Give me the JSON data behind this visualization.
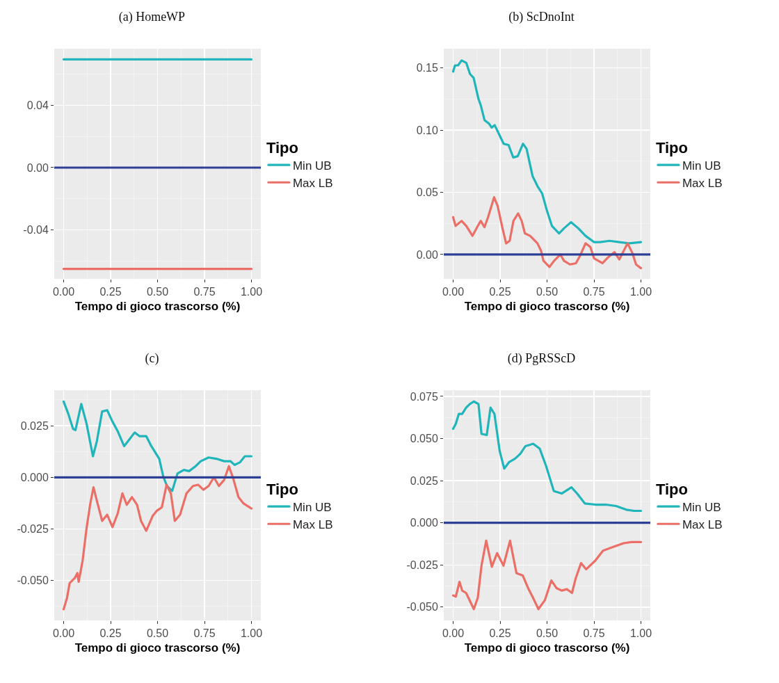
{
  "chart_data": [
    {
      "type": "line",
      "title": "(a) HomeWP",
      "xlabel": "Tempo di gioco trascorso (%)",
      "legend_title": "Tipo",
      "legend": "right",
      "grid": true,
      "line_style": "solid",
      "xlim": [
        -0.05,
        1.05
      ],
      "xticks": [
        {
          "value": 0,
          "label": "0.00"
        },
        {
          "value": 0.25,
          "label": "0.25"
        },
        {
          "value": 0.5,
          "label": "0.50"
        },
        {
          "value": 0.75,
          "label": "0.75"
        },
        {
          "value": 1,
          "label": "1.00"
        }
      ],
      "ylim": [
        -0.0714,
        0.0763
      ],
      "yticks": [
        {
          "value": -0.04,
          "label": "-0.04"
        },
        {
          "value": 0,
          "label": "0.00"
        },
        {
          "value": 0.04,
          "label": "0.04"
        }
      ],
      "ref_lines": [
        {
          "axis": "y",
          "value": 0,
          "color": "#2e3f96"
        }
      ],
      "series": [
        {
          "name": "Min UB",
          "color": "#1fb5ba",
          "x": [
            0,
            1
          ],
          "values": [
            0.0694,
            0.0694
          ]
        },
        {
          "name": "Max LB",
          "color": "#eb6f67",
          "x": [
            0,
            1
          ],
          "values": [
            -0.065,
            -0.065
          ]
        }
      ]
    },
    {
      "type": "line",
      "title": "(b) ScDnoInt",
      "xlabel": "Tempo di gioco trascorso (%)",
      "legend_title": "Tipo",
      "legend": "right",
      "grid": true,
      "line_style": "solid",
      "xlim": [
        -0.05,
        1.05
      ],
      "xticks": [
        {
          "value": 0,
          "label": "0.00"
        },
        {
          "value": 0.25,
          "label": "0.25"
        },
        {
          "value": 0.5,
          "label": "0.50"
        },
        {
          "value": 0.75,
          "label": "0.75"
        },
        {
          "value": 1,
          "label": "1.00"
        }
      ],
      "ylim": [
        -0.0196,
        0.1654
      ],
      "yticks": [
        {
          "value": 0,
          "label": "0.00"
        },
        {
          "value": 0.05,
          "label": "0.05"
        },
        {
          "value": 0.1,
          "label": "0.10"
        },
        {
          "value": 0.15,
          "label": "0.15"
        }
      ],
      "ref_lines": [
        {
          "axis": "y",
          "value": 0,
          "color": "#2e3f96"
        }
      ],
      "series": [
        {
          "name": "Min UB",
          "color": "#1fb5ba",
          "x": [
            0,
            0.01,
            0.026,
            0.045,
            0.07,
            0.09,
            0.109,
            0.135,
            0.147,
            0.167,
            0.192,
            0.205,
            0.221,
            0.25,
            0.269,
            0.295,
            0.32,
            0.344,
            0.372,
            0.391,
            0.423,
            0.449,
            0.474,
            0.5,
            0.526,
            0.564,
            0.59,
            0.628,
            0.667,
            0.705,
            0.75,
            0.782,
            0.833,
            0.885,
            0.936,
            1.0
          ],
          "values": [
            0.147,
            0.152,
            0.152,
            0.156,
            0.154,
            0.145,
            0.142,
            0.125,
            0.12,
            0.108,
            0.105,
            0.102,
            0.104,
            0.095,
            0.089,
            0.088,
            0.078,
            0.079,
            0.089,
            0.085,
            0.063,
            0.055,
            0.049,
            0.035,
            0.023,
            0.017,
            0.021,
            0.026,
            0.021,
            0.015,
            0.01,
            0.01,
            0.011,
            0.01,
            0.009,
            0.01
          ]
        },
        {
          "name": "Max LB",
          "color": "#eb6f67",
          "x": [
            0,
            0.013,
            0.045,
            0.07,
            0.103,
            0.128,
            0.147,
            0.167,
            0.186,
            0.218,
            0.237,
            0.263,
            0.282,
            0.301,
            0.321,
            0.346,
            0.365,
            0.382,
            0.41,
            0.449,
            0.468,
            0.481,
            0.513,
            0.538,
            0.571,
            0.59,
            0.622,
            0.654,
            0.679,
            0.705,
            0.731,
            0.75,
            0.795,
            0.82,
            0.859,
            0.885,
            0.929,
            0.955,
            0.974,
            1.0
          ],
          "values": [
            0.03,
            0.023,
            0.027,
            0.023,
            0.015,
            0.022,
            0.027,
            0.022,
            0.03,
            0.046,
            0.039,
            0.021,
            0.009,
            0.011,
            0.027,
            0.033,
            0.027,
            0.017,
            0.015,
            0.009,
            0.003,
            -0.005,
            -0.01,
            -0.005,
            0.0,
            -0.005,
            -0.008,
            -0.007,
            0.0,
            0.009,
            0.006,
            -0.003,
            -0.007,
            -0.003,
            0.002,
            -0.004,
            0.009,
            0.001,
            -0.008,
            -0.011
          ]
        }
      ]
    },
    {
      "type": "line",
      "title": "(c)",
      "xlabel": "Tempo di gioco trascorso (%)",
      "legend_title": "Tipo",
      "legend": "right",
      "grid": true,
      "line_style": "solid",
      "xlim": [
        -0.05,
        1.05
      ],
      "xticks": [
        {
          "value": 0,
          "label": "0.00"
        },
        {
          "value": 0.25,
          "label": "0.25"
        },
        {
          "value": 0.5,
          "label": "0.50"
        },
        {
          "value": 0.75,
          "label": "0.75"
        },
        {
          "value": 1,
          "label": "1.00"
        }
      ],
      "ylim": [
        -0.0693,
        0.0422
      ],
      "yticks": [
        {
          "value": -0.05,
          "label": "-0.050"
        },
        {
          "value": -0.025,
          "label": "-0.025"
        },
        {
          "value": 0,
          "label": "0.000"
        },
        {
          "value": 0.025,
          "label": "0.025"
        }
      ],
      "ref_lines": [
        {
          "axis": "y",
          "value": 0,
          "color": "#2e3f96"
        }
      ],
      "series": [
        {
          "name": "Min UB",
          "color": "#1fb5ba",
          "x": [
            0,
            0.025,
            0.05,
            0.063,
            0.094,
            0.122,
            0.156,
            0.177,
            0.205,
            0.232,
            0.26,
            0.288,
            0.322,
            0.343,
            0.378,
            0.405,
            0.44,
            0.467,
            0.509,
            0.53,
            0.55,
            0.578,
            0.606,
            0.64,
            0.668,
            0.703,
            0.73,
            0.772,
            0.813,
            0.855,
            0.889,
            0.91,
            0.938,
            0.965,
            1.0
          ],
          "values": [
            0.0367,
            0.0307,
            0.0235,
            0.0229,
            0.0355,
            0.026,
            0.0102,
            0.0175,
            0.0319,
            0.0325,
            0.027,
            0.0223,
            0.0151,
            0.0175,
            0.0217,
            0.0199,
            0.0199,
            0.0151,
            0.009,
            0.0006,
            -0.0042,
            -0.0066,
            0.0018,
            0.0036,
            0.003,
            0.0054,
            0.0078,
            0.0096,
            0.009,
            0.0078,
            0.0078,
            0.006,
            0.0072,
            0.0102,
            0.0102
          ]
        },
        {
          "name": "Max LB",
          "color": "#eb6f67",
          "x": [
            0,
            0.018,
            0.032,
            0.059,
            0.073,
            0.08,
            0.101,
            0.122,
            0.142,
            0.159,
            0.177,
            0.205,
            0.232,
            0.26,
            0.288,
            0.313,
            0.336,
            0.364,
            0.391,
            0.412,
            0.44,
            0.474,
            0.495,
            0.523,
            0.548,
            0.571,
            0.592,
            0.62,
            0.654,
            0.689,
            0.716,
            0.744,
            0.772,
            0.8,
            0.827,
            0.855,
            0.88,
            0.903,
            0.931,
            0.958,
            1.0
          ],
          "values": [
            -0.0639,
            -0.0584,
            -0.0512,
            -0.0488,
            -0.0464,
            -0.0506,
            -0.0404,
            -0.0247,
            -0.0127,
            -0.0048,
            -0.0114,
            -0.0211,
            -0.0181,
            -0.0241,
            -0.0175,
            -0.0078,
            -0.0133,
            -0.0096,
            -0.0133,
            -0.0211,
            -0.0259,
            -0.0187,
            -0.0163,
            -0.0145,
            -0.0036,
            -0.0078,
            -0.0211,
            -0.0181,
            -0.0078,
            -0.0042,
            -0.0036,
            -0.006,
            -0.0042,
            0.0,
            -0.0042,
            -0.0012,
            0.0054,
            -0.0006,
            -0.0096,
            -0.0127,
            -0.0151
          ]
        }
      ]
    },
    {
      "type": "line",
      "title": "(d) PgRSScD",
      "xlabel": "Tempo di gioco trascorso (%)",
      "legend_title": "Tipo",
      "legend": "right",
      "grid": true,
      "line_style": "solid",
      "xlim": [
        -0.05,
        1.05
      ],
      "xticks": [
        {
          "value": 0,
          "label": "0.00"
        },
        {
          "value": 0.25,
          "label": "0.25"
        },
        {
          "value": 0.5,
          "label": "0.50"
        },
        {
          "value": 0.75,
          "label": "0.75"
        },
        {
          "value": 1,
          "label": "1.00"
        }
      ],
      "ylim": [
        -0.0579,
        0.0787
      ],
      "yticks": [
        {
          "value": -0.05,
          "label": "-0.050"
        },
        {
          "value": -0.025,
          "label": "-0.025"
        },
        {
          "value": 0,
          "label": "0.000"
        },
        {
          "value": 0.025,
          "label": "0.025"
        },
        {
          "value": 0.05,
          "label": "0.050"
        },
        {
          "value": 0.075,
          "label": "0.075"
        }
      ],
      "ref_lines": [
        {
          "axis": "y",
          "value": 0,
          "color": "#2e3f96"
        }
      ],
      "series": [
        {
          "name": "Min UB",
          "color": "#1fb5ba",
          "x": [
            0,
            0.014,
            0.03,
            0.048,
            0.069,
            0.089,
            0.11,
            0.135,
            0.151,
            0.179,
            0.199,
            0.22,
            0.248,
            0.272,
            0.297,
            0.33,
            0.358,
            0.385,
            0.426,
            0.461,
            0.495,
            0.536,
            0.578,
            0.63,
            0.66,
            0.701,
            0.757,
            0.812,
            0.867,
            0.922,
            0.963,
            1.0
          ],
          "values": [
            0.0558,
            0.0587,
            0.0646,
            0.0646,
            0.0683,
            0.0705,
            0.072,
            0.0705,
            0.0528,
            0.0521,
            0.0683,
            0.0646,
            0.0425,
            0.0322,
            0.0359,
            0.0381,
            0.041,
            0.0455,
            0.0469,
            0.044,
            0.0337,
            0.0189,
            0.0174,
            0.0211,
            0.0174,
            0.0115,
            0.0108,
            0.0108,
            0.01,
            0.0078,
            0.0071,
            0.0071
          ]
        },
        {
          "name": "Max LB",
          "color": "#eb6f67",
          "x": [
            0,
            0.014,
            0.034,
            0.048,
            0.069,
            0.11,
            0.131,
            0.151,
            0.176,
            0.206,
            0.234,
            0.268,
            0.303,
            0.337,
            0.371,
            0.399,
            0.426,
            0.454,
            0.488,
            0.523,
            0.55,
            0.578,
            0.605,
            0.633,
            0.653,
            0.681,
            0.708,
            0.757,
            0.798,
            0.853,
            0.908,
            0.949,
            1.0
          ],
          "values": [
            -0.0431,
            -0.0438,
            -0.035,
            -0.0402,
            -0.0416,
            -0.0512,
            -0.0446,
            -0.0254,
            -0.0106,
            -0.0261,
            -0.018,
            -0.0254,
            -0.0106,
            -0.0298,
            -0.0313,
            -0.0387,
            -0.0446,
            -0.0512,
            -0.046,
            -0.0342,
            -0.0387,
            -0.0402,
            -0.0394,
            -0.0416,
            -0.0328,
            -0.0239,
            -0.0276,
            -0.0224,
            -0.0165,
            -0.0143,
            -0.0121,
            -0.0114,
            -0.0114
          ]
        }
      ]
    }
  ]
}
